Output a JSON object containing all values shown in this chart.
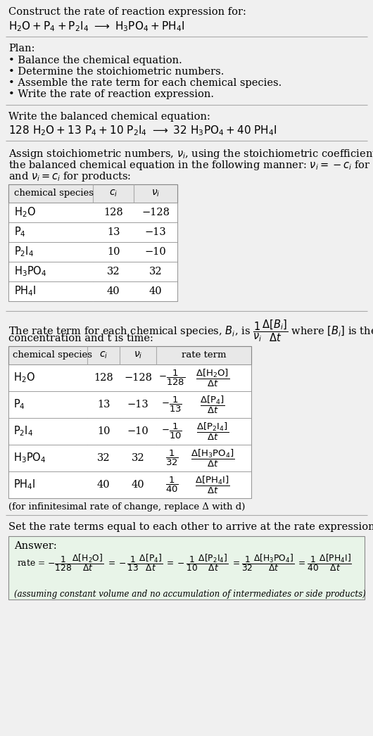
{
  "bg_color": "#f0f0f0",
  "white": "#ffffff",
  "text_color": "#000000",
  "light_gray": "#e8e8e8",
  "title_text": "Construct the rate of reaction expression for:",
  "plan_items": [
    "• Balance the chemical equation.",
    "• Determine the stoichiometric numbers.",
    "• Assemble the rate term for each chemical species.",
    "• Write the rate of reaction expression."
  ],
  "answer_box_color": "#e8f4e8",
  "answer_note": "(assuming constant volume and no accumulation of intermediates or side products)",
  "infinitesimal_note": "(for infinitesimal rate of change, replace Δ with d)",
  "set_rate_text": "Set the rate terms equal to each other to arrive at the rate expression:",
  "ci_vals": [
    "128",
    "13",
    "10",
    "32",
    "40"
  ],
  "nu_vals": [
    "−128",
    "−13",
    "−10",
    "32",
    "40"
  ]
}
